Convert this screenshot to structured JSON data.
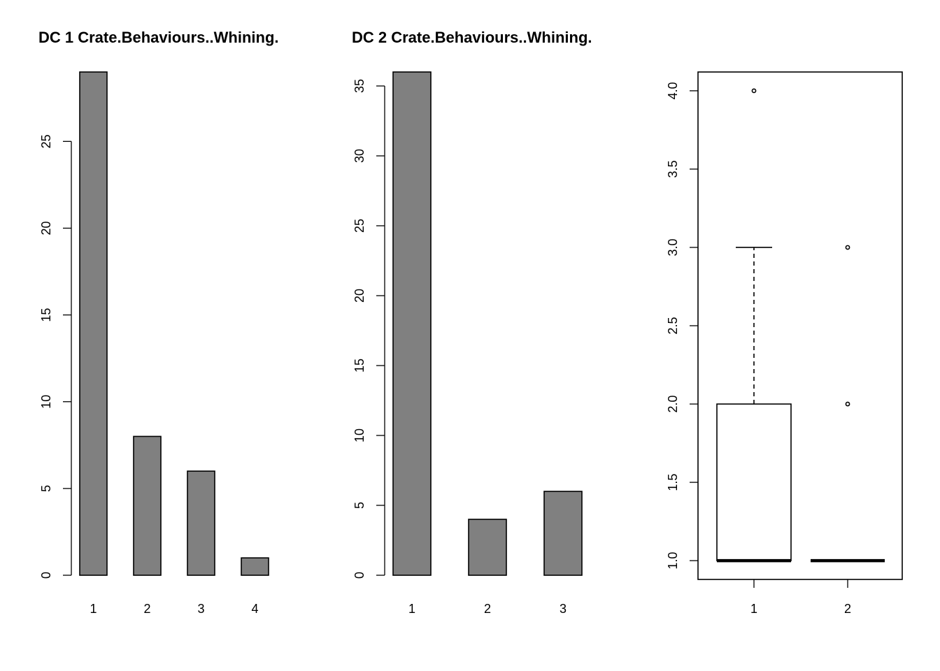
{
  "chart_data": [
    {
      "type": "bar",
      "title": "DC 1 Crate.Behaviours..Whining.",
      "categories": [
        "1",
        "2",
        "3",
        "4"
      ],
      "values": [
        29,
        8,
        6,
        1
      ],
      "xlabel": "",
      "ylabel": "",
      "ylim": [
        0,
        29
      ],
      "yticks": [
        0,
        5,
        10,
        15,
        20,
        25
      ],
      "ytick_labels": [
        "0",
        "5",
        "10",
        "15",
        "20",
        "25"
      ],
      "grid": false,
      "bar_color": "#808080"
    },
    {
      "type": "bar",
      "title": "DC 2 Crate.Behaviours..Whining.",
      "categories": [
        "1",
        "2",
        "3"
      ],
      "values": [
        36,
        4,
        6
      ],
      "xlabel": "",
      "ylabel": "",
      "ylim": [
        0,
        36
      ],
      "yticks": [
        0,
        5,
        10,
        15,
        20,
        25,
        30,
        35
      ],
      "ytick_labels": [
        "0",
        "5",
        "10",
        "15",
        "20",
        "25",
        "30",
        "35"
      ],
      "grid": false,
      "bar_color": "#808080"
    },
    {
      "type": "box",
      "title": "",
      "categories": [
        "1",
        "2"
      ],
      "boxes": [
        {
          "name": "1",
          "whisker_low": 1.0,
          "q1": 1.0,
          "median": 1.0,
          "q3": 2.0,
          "whisker_high": 3.0,
          "outliers": [
            4.0
          ]
        },
        {
          "name": "2",
          "whisker_low": 1.0,
          "q1": 1.0,
          "median": 1.0,
          "q3": 1.0,
          "whisker_high": 1.0,
          "outliers": [
            2.0,
            3.0
          ]
        }
      ],
      "ylim": [
        0.88,
        4.12
      ],
      "yticks": [
        1.0,
        1.5,
        2.0,
        2.5,
        3.0,
        3.5,
        4.0
      ],
      "ytick_labels": [
        "1.0",
        "1.5",
        "2.0",
        "2.5",
        "3.0",
        "3.5",
        "4.0"
      ],
      "grid": false
    }
  ]
}
